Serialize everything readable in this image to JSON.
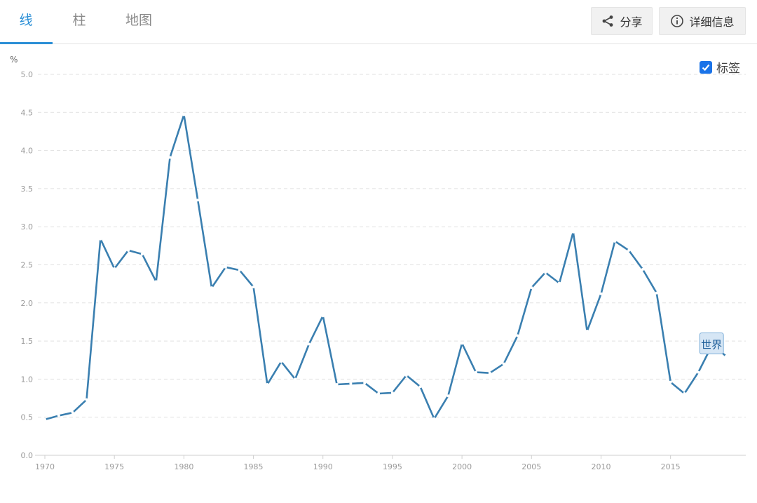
{
  "tabs": [
    {
      "label": "线",
      "active": true
    },
    {
      "label": "柱",
      "active": false
    },
    {
      "label": "地图",
      "active": false
    }
  ],
  "buttons": {
    "share_label": "分享",
    "details_label": "详细信息"
  },
  "legend_toggle": {
    "label": "标签",
    "checked": true
  },
  "colors": {
    "accent": "#2b8fd6",
    "line": "#3a7fb0",
    "checkbox": "#1a73e8"
  },
  "chart_data": {
    "type": "line",
    "unit_label": "%",
    "xlim": [
      1970,
      2019
    ],
    "ylim": [
      0,
      5
    ],
    "yticks": [
      "0.0",
      "0.5",
      "1.0",
      "1.5",
      "2.0",
      "2.5",
      "3.0",
      "3.5",
      "4.0",
      "4.5",
      "5.0"
    ],
    "xticks": [
      "1970",
      "1975",
      "1980",
      "1985",
      "1990",
      "1995",
      "2000",
      "2005",
      "2010",
      "2015"
    ],
    "grid": "horizontal dashed",
    "series": [
      {
        "name": "世界",
        "x": [
          1970,
          1971,
          1972,
          1973,
          1974,
          1975,
          1976,
          1977,
          1978,
          1979,
          1980,
          1981,
          1982,
          1983,
          1984,
          1985,
          1986,
          1987,
          1988,
          1989,
          1990,
          1991,
          1992,
          1993,
          1994,
          1995,
          1996,
          1997,
          1998,
          1999,
          2000,
          2001,
          2002,
          2003,
          2004,
          2005,
          2006,
          2007,
          2008,
          2009,
          2010,
          2011,
          2012,
          2013,
          2014,
          2015,
          2016,
          2017,
          2018,
          2019
        ],
        "values": [
          0.47,
          0.52,
          0.56,
          0.73,
          2.84,
          2.45,
          2.69,
          2.64,
          2.28,
          3.91,
          4.47,
          3.35,
          2.2,
          2.47,
          2.43,
          2.21,
          0.93,
          1.23,
          1.0,
          1.46,
          1.83,
          0.93,
          0.94,
          0.95,
          0.81,
          0.82,
          1.05,
          0.9,
          0.48,
          0.78,
          1.47,
          1.09,
          1.08,
          1.2,
          1.57,
          2.2,
          2.4,
          2.26,
          2.93,
          1.63,
          2.12,
          2.81,
          2.69,
          2.44,
          2.13,
          0.96,
          0.81,
          1.09,
          1.45,
          1.3
        ]
      }
    ]
  }
}
